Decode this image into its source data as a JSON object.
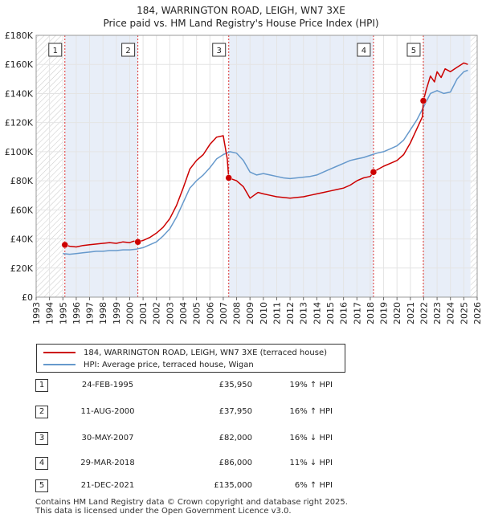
{
  "title": "184, WARRINGTON ROAD, LEIGH, WN7 3XE",
  "subtitle": "Price paid vs. HM Land Registry's House Price Index (HPI)",
  "colors": {
    "property": "#cc0000",
    "hpi": "#6699cc",
    "band": "#e8eef8",
    "vline": "#dd3333"
  },
  "chart_data": {
    "type": "line",
    "title": "184, WARRINGTON ROAD, LEIGH, WN7 3XE",
    "xlim": [
      1993,
      2026
    ],
    "ylim": [
      0,
      180000
    ],
    "y_ticks": [
      {
        "value": 0,
        "label": "£0"
      },
      {
        "value": 20000,
        "label": "£20K"
      },
      {
        "value": 40000,
        "label": "£40K"
      },
      {
        "value": 60000,
        "label": "£60K"
      },
      {
        "value": 80000,
        "label": "£80K"
      },
      {
        "value": 100000,
        "label": "£100K"
      },
      {
        "value": 120000,
        "label": "£120K"
      },
      {
        "value": 140000,
        "label": "£140K"
      },
      {
        "value": 160000,
        "label": "£160K"
      },
      {
        "value": 180000,
        "label": "£180K"
      }
    ],
    "x_ticks": [
      "1993",
      "1994",
      "1995",
      "1996",
      "1997",
      "1998",
      "1999",
      "2000",
      "2001",
      "2002",
      "2003",
      "2004",
      "2005",
      "2006",
      "2007",
      "2008",
      "2009",
      "2010",
      "2011",
      "2012",
      "2013",
      "2014",
      "2015",
      "2016",
      "2017",
      "2018",
      "2019",
      "2020",
      "2021",
      "2022",
      "2023",
      "2024",
      "2025",
      "2026"
    ],
    "shaded_periods": [
      [
        1995.15,
        2000.61
      ],
      [
        2007.41,
        2018.24
      ],
      [
        2021.97,
        2025.5
      ]
    ],
    "hatched_before": 1995.0,
    "hatched_after": 2025.5,
    "series": [
      {
        "name": "184, WARRINGTON ROAD, LEIGH, WN7 3XE (terraced house)",
        "x": [
          1995.0,
          1995.15,
          1995.5,
          1996,
          1996.5,
          1997,
          1997.5,
          1998,
          1998.5,
          1999,
          1999.5,
          2000,
          2000.3,
          2000.61,
          2001,
          2001.5,
          2002,
          2002.5,
          2003,
          2003.5,
          2004,
          2004.5,
          2005,
          2005.5,
          2006,
          2006.5,
          2007,
          2007.3,
          2007.41,
          2007.7,
          2008,
          2008.5,
          2009,
          2009.3,
          2009.6,
          2010,
          2010.5,
          2011,
          2011.5,
          2012,
          2012.5,
          2013,
          2013.5,
          2014,
          2014.5,
          2015,
          2015.5,
          2016,
          2016.5,
          2017,
          2017.5,
          2018,
          2018.24,
          2018.6,
          2019,
          2019.5,
          2020,
          2020.5,
          2021,
          2021.5,
          2021.9,
          2021.97,
          2022.2,
          2022.5,
          2022.8,
          2023,
          2023.3,
          2023.6,
          2024,
          2024.5,
          2025,
          2025.3
        ],
        "y": [
          35000,
          35950,
          35000,
          34500,
          35500,
          36000,
          36500,
          37000,
          37500,
          37000,
          38000,
          37500,
          38500,
          37950,
          39000,
          41000,
          44000,
          48000,
          54000,
          63000,
          75000,
          88000,
          94000,
          98000,
          105000,
          110000,
          111000,
          95000,
          82000,
          81000,
          80000,
          76000,
          68000,
          70000,
          72000,
          71000,
          70000,
          69000,
          68500,
          68000,
          68500,
          69000,
          70000,
          71000,
          72000,
          73000,
          74000,
          75000,
          77000,
          80000,
          82000,
          83000,
          86000,
          88000,
          90000,
          92000,
          94000,
          98000,
          106000,
          116000,
          124000,
          135000,
          143000,
          152000,
          148000,
          155000,
          151000,
          157000,
          155000,
          158000,
          161000,
          160000
        ]
      },
      {
        "name": "HPI: Average price, terraced house, Wigan",
        "x": [
          1995.0,
          1995.5,
          1996,
          1996.5,
          1997,
          1997.5,
          1998,
          1998.5,
          1999,
          1999.5,
          2000,
          2000.5,
          2001,
          2001.5,
          2002,
          2002.5,
          2003,
          2003.5,
          2004,
          2004.5,
          2005,
          2005.5,
          2006,
          2006.5,
          2007,
          2007.5,
          2008,
          2008.5,
          2009,
          2009.5,
          2010,
          2010.5,
          2011,
          2011.5,
          2012,
          2012.5,
          2013,
          2013.5,
          2014,
          2014.5,
          2015,
          2015.5,
          2016,
          2016.5,
          2017,
          2017.5,
          2018,
          2018.5,
          2019,
          2019.5,
          2020,
          2020.5,
          2021,
          2021.5,
          2022,
          2022.5,
          2023,
          2023.5,
          2024,
          2024.5,
          2025,
          2025.3
        ],
        "y": [
          30000,
          29500,
          30000,
          30500,
          31000,
          31500,
          31500,
          32000,
          32000,
          32500,
          32500,
          33000,
          34000,
          36000,
          38000,
          42000,
          47000,
          55000,
          65000,
          75000,
          80000,
          84000,
          89000,
          95000,
          98000,
          100000,
          99000,
          94000,
          86000,
          84000,
          85000,
          84000,
          83000,
          82000,
          81500,
          82000,
          82500,
          83000,
          84000,
          86000,
          88000,
          90000,
          92000,
          94000,
          95000,
          96000,
          97500,
          99000,
          100000,
          102000,
          104000,
          108000,
          115000,
          122000,
          131000,
          140000,
          142000,
          140000,
          141000,
          150000,
          155000,
          156000
        ]
      }
    ],
    "sales": [
      {
        "label": "1",
        "x": 1995.15,
        "price": 35950
      },
      {
        "label": "2",
        "x": 2000.61,
        "price": 37950
      },
      {
        "label": "3",
        "x": 2007.41,
        "price": 82000
      },
      {
        "label": "4",
        "x": 2018.24,
        "price": 86000
      },
      {
        "label": "5",
        "x": 2021.97,
        "price": 135000
      }
    ]
  },
  "legend": {
    "property": "184, WARRINGTON ROAD, LEIGH, WN7 3XE (terraced house)",
    "hpi": "HPI: Average price, terraced house, Wigan"
  },
  "sales_table": [
    {
      "num": "1",
      "date": "24-FEB-1995",
      "price": "£35,950",
      "hpi": "19% ↑ HPI"
    },
    {
      "num": "2",
      "date": "11-AUG-2000",
      "price": "£37,950",
      "hpi": "16% ↑ HPI"
    },
    {
      "num": "3",
      "date": "30-MAY-2007",
      "price": "£82,000",
      "hpi": "16% ↓ HPI"
    },
    {
      "num": "4",
      "date": "29-MAR-2018",
      "price": "£86,000",
      "hpi": "11% ↓ HPI"
    },
    {
      "num": "5",
      "date": "21-DEC-2021",
      "price": "£135,000",
      "hpi": "6% ↑ HPI"
    }
  ],
  "footer": {
    "line1": "Contains HM Land Registry data © Crown copyright and database right 2025.",
    "line2": "This data is licensed under the Open Government Licence v3.0."
  }
}
